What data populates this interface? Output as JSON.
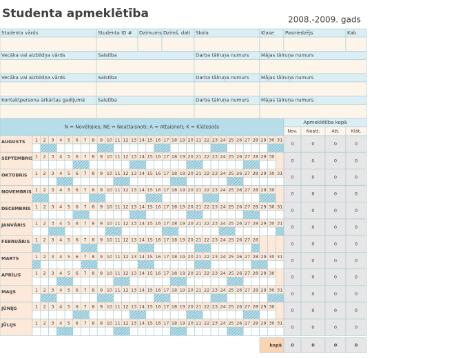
{
  "header": {
    "title": "Studenta apmeklētība",
    "year": "2008.-2009. gads"
  },
  "info_rows": [
    [
      "Studenta vārds",
      "Studenta ID #",
      "Dzimums",
      "Dzimš. dati",
      "Skola",
      "Klase",
      "Pasniedzējs",
      "Kab."
    ],
    [
      "Vecāka vai aizbildņa vārds",
      "Saistība",
      "Darba tālruņa numurs",
      "Mājas tālruņa numurs"
    ],
    [
      "Vecāka vai aizbildņa vārds",
      "Saistība",
      "Darba tālruņa numurs",
      "Mājas tālruņa numurs"
    ],
    [
      "Kontaktpersona ārkārtas gadījumā",
      "Saistība",
      "Darba tālruņa numurs",
      "Mājas tālruņa numurs"
    ]
  ],
  "legend": "N = Novēlojies; NE = Neattaisnoti; A = Attaisnoti; K = Klātesošs",
  "totals_header": "Apmeklētība kopā",
  "totals_columns": [
    "Nov.",
    "Neatt.",
    "Att.",
    "Klāt."
  ],
  "months": [
    {
      "name": "AUGUSTS",
      "days": [
        1,
        2,
        3,
        4,
        5,
        6,
        7,
        8,
        9,
        10,
        11,
        12,
        13,
        14,
        15,
        16,
        17,
        18,
        19,
        20,
        21,
        22,
        23,
        24,
        25,
        26,
        27,
        28,
        29,
        30,
        31
      ],
      "totals": [
        0,
        0,
        0,
        0
      ]
    },
    {
      "name": "SEPTEMBRIS",
      "days": [
        1,
        2,
        3,
        4,
        5,
        6,
        7,
        8,
        9,
        10,
        11,
        12,
        13,
        14,
        15,
        16,
        17,
        18,
        19,
        20,
        21,
        22,
        23,
        24,
        25,
        26,
        27,
        28,
        29,
        30
      ],
      "totals": [
        0,
        0,
        0,
        0
      ]
    },
    {
      "name": "OKTOBRIS",
      "days": [
        1,
        2,
        3,
        4,
        5,
        6,
        7,
        8,
        9,
        10,
        11,
        12,
        13,
        14,
        15,
        16,
        17,
        18,
        19,
        20,
        21,
        22,
        23,
        24,
        25,
        26,
        27,
        28,
        29,
        30,
        31
      ],
      "totals": [
        0,
        0,
        0,
        0
      ]
    },
    {
      "name": "NOVEMBRIS",
      "days": [
        1,
        2,
        3,
        4,
        5,
        6,
        7,
        8,
        9,
        10,
        11,
        12,
        13,
        14,
        15,
        16,
        17,
        18,
        19,
        20,
        21,
        22,
        23,
        24,
        25,
        26,
        27,
        28,
        29,
        30
      ],
      "totals": [
        0,
        0,
        0,
        0
      ]
    },
    {
      "name": "DECEMBRIS",
      "days": [
        1,
        2,
        3,
        4,
        5,
        6,
        7,
        8,
        9,
        10,
        11,
        12,
        13,
        14,
        15,
        16,
        17,
        18,
        19,
        20,
        21,
        22,
        23,
        24,
        25,
        26,
        27,
        28,
        29,
        30,
        31
      ],
      "totals": [
        0,
        0,
        0,
        0
      ]
    },
    {
      "name": "JANVĀRIS",
      "days": [
        1,
        2,
        3,
        4,
        5,
        6,
        7,
        8,
        9,
        10,
        11,
        12,
        13,
        14,
        15,
        16,
        17,
        18,
        19,
        20,
        21,
        22,
        23,
        24,
        25,
        26,
        27,
        28,
        29,
        30,
        31
      ],
      "totals": [
        0,
        0,
        0,
        0
      ]
    },
    {
      "name": "FEBRUĀRIS",
      "days": [
        1,
        2,
        3,
        4,
        5,
        6,
        7,
        8,
        9,
        10,
        11,
        12,
        13,
        14,
        15,
        16,
        17,
        18,
        19,
        20,
        21,
        22,
        23,
        24,
        25,
        26,
        27,
        28
      ],
      "totals": [
        0,
        0,
        0,
        0
      ]
    },
    {
      "name": "MARTS",
      "days": [
        1,
        2,
        3,
        4,
        5,
        6,
        7,
        8,
        9,
        10,
        11,
        12,
        13,
        14,
        15,
        16,
        17,
        18,
        19,
        20,
        21,
        22,
        23,
        24,
        25,
        26,
        27,
        28,
        29,
        30,
        31
      ],
      "totals": [
        0,
        0,
        0,
        0
      ]
    },
    {
      "name": "APRĪLIS",
      "days": [
        1,
        2,
        3,
        4,
        5,
        6,
        7,
        8,
        9,
        10,
        11,
        12,
        13,
        14,
        15,
        16,
        17,
        18,
        19,
        20,
        21,
        22,
        23,
        24,
        25,
        26,
        27,
        28,
        29,
        30
      ],
      "totals": [
        0,
        0,
        0,
        0
      ]
    },
    {
      "name": "MAIJS",
      "days": [
        1,
        2,
        3,
        4,
        5,
        6,
        7,
        8,
        9,
        10,
        11,
        12,
        13,
        14,
        15,
        16,
        17,
        18,
        19,
        20,
        21,
        22,
        23,
        24,
        25,
        26,
        27,
        28,
        29,
        30,
        31
      ],
      "totals": [
        0,
        0,
        0,
        0
      ]
    },
    {
      "name": "JŪNIJS",
      "days": [
        1,
        2,
        3,
        4,
        5,
        6,
        7,
        8,
        9,
        10,
        11,
        12,
        13,
        14,
        15,
        16,
        17,
        18,
        19,
        20,
        21,
        22,
        23,
        24,
        25,
        26,
        27,
        28,
        29,
        30
      ],
      "totals": [
        0,
        0,
        0,
        0
      ]
    },
    {
      "name": "JŪLIJS",
      "days": [
        1,
        2,
        3,
        4,
        5,
        6,
        7,
        8,
        9,
        10,
        11,
        12,
        13,
        14,
        15,
        16,
        17,
        18,
        19,
        20,
        21,
        22,
        23,
        24,
        25,
        26,
        27,
        28,
        29,
        30,
        31
      ],
      "totals": [
        0,
        0,
        0,
        0
      ]
    }
  ],
  "grand_total": {
    "label": "kopā",
    "values": [
      0,
      0,
      0,
      0
    ]
  }
}
